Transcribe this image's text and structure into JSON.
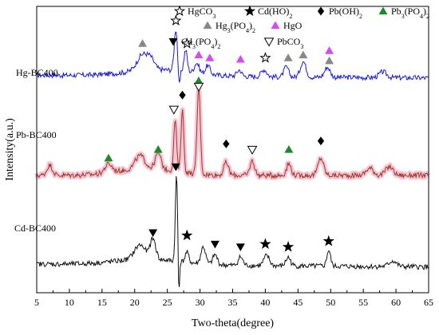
{
  "chart_data": {
    "type": "line",
    "xlabel": "Two-theta(degree)",
    "ylabel": "Intensity(a.u.)",
    "xlim": [
      5,
      65
    ],
    "xticks": [
      "5",
      "10",
      "15",
      "20",
      "25",
      "30",
      "35",
      "40",
      "45",
      "50",
      "55",
      "60",
      "65"
    ],
    "y_ticks_shown": false,
    "grid": false,
    "series": [
      {
        "name": "Hg-BC400",
        "color": "#1a1adb",
        "baseline": 0.76,
        "peaks": [
          {
            "x": 21.2,
            "h": 0.055,
            "w": 1.2
          },
          {
            "x": 22.5,
            "h": 0.03,
            "w": 0.8
          },
          {
            "x": 26.3,
            "h": 0.145,
            "w": 0.35
          },
          {
            "x": 27.8,
            "h": 0.075,
            "w": 0.35
          },
          {
            "x": 29.5,
            "h": 0.035,
            "w": 0.5
          },
          {
            "x": 31.2,
            "h": 0.03,
            "w": 0.5
          },
          {
            "x": 36.0,
            "h": 0.022,
            "w": 0.5
          },
          {
            "x": 39.8,
            "h": 0.025,
            "w": 0.6
          },
          {
            "x": 43.2,
            "h": 0.035,
            "w": 0.5
          },
          {
            "x": 45.8,
            "h": 0.055,
            "w": 0.6
          },
          {
            "x": 49.5,
            "h": 0.035,
            "w": 0.6
          },
          {
            "x": 58.0,
            "h": 0.02,
            "w": 0.8
          }
        ]
      },
      {
        "name": "Pb-BC400",
        "color": "#a0391f",
        "shadow": "#f5c6d8",
        "baseline": 0.41,
        "peaks": [
          {
            "x": 7.0,
            "h": 0.035,
            "w": 0.6
          },
          {
            "x": 16.0,
            "h": 0.03,
            "w": 0.8
          },
          {
            "x": 20.8,
            "h": 0.045,
            "w": 1.0
          },
          {
            "x": 23.6,
            "h": 0.055,
            "w": 0.6
          },
          {
            "x": 26.2,
            "h": 0.18,
            "w": 0.3
          },
          {
            "x": 27.3,
            "h": 0.22,
            "w": 0.3
          },
          {
            "x": 29.8,
            "h": 0.3,
            "w": 0.35
          },
          {
            "x": 34.0,
            "h": 0.045,
            "w": 0.5
          },
          {
            "x": 38.0,
            "h": 0.05,
            "w": 0.5
          },
          {
            "x": 43.6,
            "h": 0.04,
            "w": 0.5
          },
          {
            "x": 48.5,
            "h": 0.06,
            "w": 0.6
          },
          {
            "x": 56.0,
            "h": 0.025,
            "w": 0.8
          },
          {
            "x": 59.0,
            "h": 0.03,
            "w": 0.8
          }
        ]
      },
      {
        "name": "Cd-BC400",
        "color": "#111111",
        "baseline": 0.1,
        "peaks": [
          {
            "x": 20.8,
            "h": 0.05,
            "w": 1.2
          },
          {
            "x": 22.8,
            "h": 0.07,
            "w": 0.6
          },
          {
            "x": 26.4,
            "h": 0.3,
            "w": 0.25
          },
          {
            "x": 28.0,
            "h": 0.035,
            "w": 0.4
          },
          {
            "x": 30.5,
            "h": 0.06,
            "w": 0.5
          },
          {
            "x": 32.3,
            "h": 0.035,
            "w": 0.5
          },
          {
            "x": 36.2,
            "h": 0.03,
            "w": 0.5
          },
          {
            "x": 40.2,
            "h": 0.035,
            "w": 0.6
          },
          {
            "x": 43.5,
            "h": 0.03,
            "w": 0.5
          },
          {
            "x": 49.7,
            "h": 0.055,
            "w": 0.4
          },
          {
            "x": 59.5,
            "h": 0.02,
            "w": 0.8
          }
        ]
      }
    ],
    "legend": [
      {
        "symbol": "star-open",
        "color": "#000000",
        "label": "HgCO",
        "sub": "3"
      },
      {
        "symbol": "star-filled",
        "color": "#000000",
        "label": "Cd(HO)",
        "sub": "2"
      },
      {
        "symbol": "diamond",
        "color": "#000000",
        "label": "Pb(OH)",
        "sub": "2"
      },
      {
        "symbol": "triangle-up",
        "color": "#1e8a2e",
        "label": "Pb",
        "sub": "3",
        "label2": "(PO",
        "sub2": "4",
        "label3": ")",
        "sub3": "2"
      },
      {
        "symbol": "triangle-up",
        "color": "#888888",
        "label": "Hg",
        "sub": "3",
        "label2": "(PO",
        "sub2": "4",
        "label3": ")",
        "sub3": "2"
      },
      {
        "symbol": "triangle-up",
        "color": "#d24cf0",
        "label": "HgO"
      },
      {
        "symbol": "triangle-down",
        "color": "#000000",
        "label": "Cd",
        "sub": "3",
        "label2": "(PO",
        "sub2": "4",
        "label3": ")",
        "sub3": "2"
      },
      {
        "symbol": "triangle-down-open",
        "color": "#000000",
        "label": "PbCO",
        "sub": "3"
      }
    ],
    "markers": [
      {
        "series": "Hg-BC400",
        "symbol": "triangle-up",
        "color": "#888888",
        "x": 21.2,
        "y": 0.87
      },
      {
        "series": "Hg-BC400",
        "symbol": "star-open",
        "color": "#000000",
        "x": 26.3,
        "y": 0.95
      },
      {
        "series": "Hg-BC400",
        "symbol": "star-open",
        "color": "#000000",
        "x": 28.0,
        "y": 0.87
      },
      {
        "series": "Hg-BC400",
        "symbol": "triangle-up",
        "color": "#d24cf0",
        "x": 29.8,
        "y": 0.83
      },
      {
        "series": "Hg-BC400",
        "symbol": "triangle-up",
        "color": "#d24cf0",
        "x": 31.5,
        "y": 0.82
      },
      {
        "series": "Hg-BC400",
        "symbol": "triangle-up",
        "color": "#d24cf0",
        "x": 36.2,
        "y": 0.815
      },
      {
        "series": "Hg-BC400",
        "symbol": "star-open",
        "color": "#000000",
        "x": 40.0,
        "y": 0.82
      },
      {
        "series": "Hg-BC400",
        "symbol": "triangle-up",
        "color": "#888888",
        "x": 43.5,
        "y": 0.82
      },
      {
        "series": "Hg-BC400",
        "symbol": "triangle-up",
        "color": "#888888",
        "x": 45.8,
        "y": 0.83
      },
      {
        "series": "Hg-BC400",
        "symbol": "triangle-up",
        "color": "#d24cf0",
        "x": 49.8,
        "y": 0.845
      },
      {
        "series": "Hg-BC400",
        "symbol": "triangle-up",
        "color": "#888888",
        "x": 49.8,
        "y": 0.81
      },
      {
        "series": "Pb-BC400",
        "symbol": "triangle-up",
        "color": "#1e8a2e",
        "x": 29.8,
        "y": 0.74
      },
      {
        "series": "Pb-BC400",
        "symbol": "triangle-down-open",
        "color": "#000000",
        "x": 29.8,
        "y": 0.72
      },
      {
        "series": "Pb-BC400",
        "symbol": "diamond",
        "color": "#000000",
        "x": 27.3,
        "y": 0.69
      },
      {
        "series": "Pb-BC400",
        "symbol": "triangle-down-open",
        "color": "#000000",
        "x": 26.0,
        "y": 0.64
      },
      {
        "series": "Pb-BC400",
        "symbol": "triangle-up",
        "color": "#1e8a2e",
        "x": 16.0,
        "y": 0.47
      },
      {
        "series": "Pb-BC400",
        "symbol": "triangle-up",
        "color": "#1e8a2e",
        "x": 23.6,
        "y": 0.5
      },
      {
        "series": "Pb-BC400",
        "symbol": "diamond",
        "color": "#000000",
        "x": 34.0,
        "y": 0.52
      },
      {
        "series": "Pb-BC400",
        "symbol": "triangle-down-open",
        "color": "#000000",
        "x": 38.0,
        "y": 0.5
      },
      {
        "series": "Pb-BC400",
        "symbol": "triangle-up",
        "color": "#1e8a2e",
        "x": 43.6,
        "y": 0.5
      },
      {
        "series": "Pb-BC400",
        "symbol": "diamond",
        "color": "#000000",
        "x": 48.5,
        "y": 0.53
      },
      {
        "series": "Cd-BC400",
        "symbol": "triangle-down",
        "color": "#000000",
        "x": 26.3,
        "y": 0.44
      },
      {
        "series": "Cd-BC400",
        "symbol": "triangle-down",
        "color": "#000000",
        "x": 22.8,
        "y": 0.21
      },
      {
        "series": "Cd-BC400",
        "symbol": "star-filled",
        "color": "#000000",
        "x": 28.0,
        "y": 0.2
      },
      {
        "series": "Cd-BC400",
        "symbol": "triangle-down",
        "color": "#000000",
        "x": 32.3,
        "y": 0.17
      },
      {
        "series": "Cd-BC400",
        "symbol": "triangle-down",
        "color": "#000000",
        "x": 36.2,
        "y": 0.16
      },
      {
        "series": "Cd-BC400",
        "symbol": "star-filled",
        "color": "#000000",
        "x": 40.0,
        "y": 0.17
      },
      {
        "series": "Cd-BC400",
        "symbol": "star-filled",
        "color": "#000000",
        "x": 43.5,
        "y": 0.16
      },
      {
        "series": "Cd-BC400",
        "symbol": "star-filled",
        "color": "#000000",
        "x": 49.7,
        "y": 0.18
      }
    ]
  }
}
